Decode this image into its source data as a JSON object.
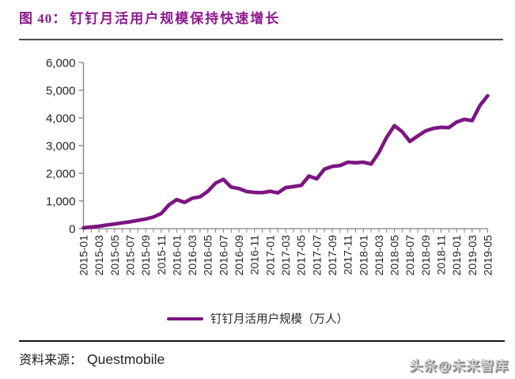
{
  "figure": {
    "label": "图 40：",
    "title": "钉钉月活用户规模保持快速增长"
  },
  "colors": {
    "title_purple": "#8E188E",
    "line_purple": "#7D1581",
    "axis_gray": "#808080",
    "tick_label": "#262626",
    "top_rule": "#4d4d4d",
    "bottom_rule": "#141414",
    "watermark_gray": "#d6d6d6"
  },
  "chart_data": {
    "type": "line",
    "title": "",
    "xlabel": "",
    "ylabel": "",
    "series_name": "钉钉月活用户规模（万人）",
    "ylim": [
      0,
      6000
    ],
    "ytick_interval": 1000,
    "ytick_labels": [
      "0",
      "1,000",
      "2,000",
      "3,000",
      "4,000",
      "5,000",
      "6,000"
    ],
    "grid": false,
    "legend_position": "bottom",
    "xtick_label_every": 2,
    "x": [
      "2015-01",
      "2015-02",
      "2015-03",
      "2015-04",
      "2015-05",
      "2015-06",
      "2015-07",
      "2015-08",
      "2015-09",
      "2015-10",
      "2015-11",
      "2015-12",
      "2016-01",
      "2016-02",
      "2016-03",
      "2016-04",
      "2016-05",
      "2016-06",
      "2016-07",
      "2016-08",
      "2016-09",
      "2016-10",
      "2016-11",
      "2016-12",
      "2017-01",
      "2017-02",
      "2017-03",
      "2017-04",
      "2017-05",
      "2017-06",
      "2017-07",
      "2017-08",
      "2017-09",
      "2017-10",
      "2017-11",
      "2017-12",
      "2018-01",
      "2018-02",
      "2018-03",
      "2018-04",
      "2018-05",
      "2018-06",
      "2018-07",
      "2018-08",
      "2018-09",
      "2018-10",
      "2018-11",
      "2018-12",
      "2019-01",
      "2019-02",
      "2019-03",
      "2019-04",
      "2019-05"
    ],
    "values": [
      30,
      60,
      90,
      130,
      170,
      210,
      250,
      300,
      350,
      420,
      550,
      860,
      1050,
      950,
      1100,
      1150,
      1350,
      1650,
      1780,
      1500,
      1450,
      1340,
      1310,
      1300,
      1350,
      1290,
      1480,
      1520,
      1560,
      1900,
      1800,
      2150,
      2250,
      2280,
      2400,
      2380,
      2400,
      2330,
      2750,
      3300,
      3720,
      3500,
      3150,
      3350,
      3530,
      3620,
      3660,
      3650,
      3850,
      3950,
      3900,
      4450,
      4800
    ]
  },
  "legend": {
    "label": "钉钉月活用户规模（万人）"
  },
  "source": {
    "prefix": "资料来源：",
    "value": "Questmobile"
  },
  "watermark": {
    "text": "头条@未来智库"
  }
}
